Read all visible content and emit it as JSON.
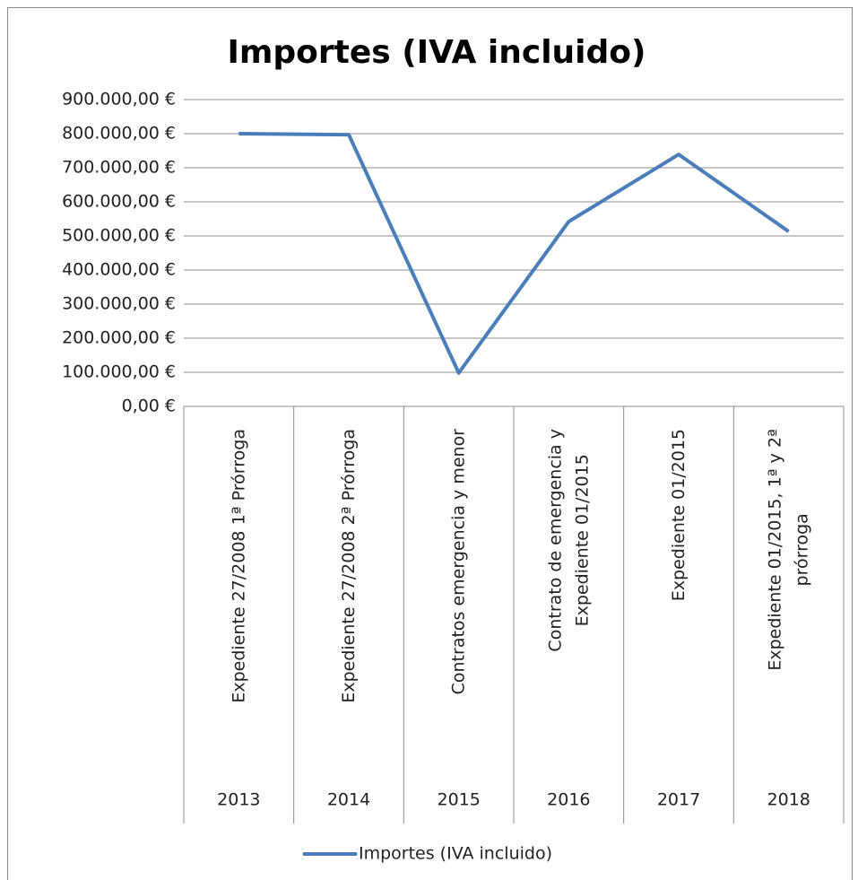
{
  "chart_data": {
    "type": "line",
    "title": "Importes (IVA incluido)",
    "categories": [
      "Expediente 27/2008 1ª Prórroga",
      "Expediente 27/2008 2ª Prórroga",
      "Contratos emergencia y menor",
      "Contrato de emergencia y Expediente 01/2015",
      "Expediente 01/2015",
      "Expediente 01/2015, 1ª y 2ª prórroga"
    ],
    "years": [
      "2013",
      "2014",
      "2015",
      "2016",
      "2017",
      "2018"
    ],
    "series": [
      {
        "name": "Importes (IVA incluido)",
        "color": "#4a7ebb",
        "values": [
          800000,
          797000,
          98000,
          542000,
          739000,
          513000
        ]
      }
    ],
    "ylim": [
      0,
      900000
    ],
    "yticks": [
      {
        "value": 0,
        "label": "0,00 €"
      },
      {
        "value": 100000,
        "label": "100.000,00 €"
      },
      {
        "value": 200000,
        "label": "200.000,00 €"
      },
      {
        "value": 300000,
        "label": "300.000,00 €"
      },
      {
        "value": 400000,
        "label": "400.000,00 €"
      },
      {
        "value": 500000,
        "label": "500.000,00 €"
      },
      {
        "value": 600000,
        "label": "600.000,00 €"
      },
      {
        "value": 700000,
        "label": "700.000,00 €"
      },
      {
        "value": 800000,
        "label": "800.000,00 €"
      },
      {
        "value": 900000,
        "label": "900.000,00 €"
      }
    ],
    "grid": true,
    "legend": "bottom"
  }
}
